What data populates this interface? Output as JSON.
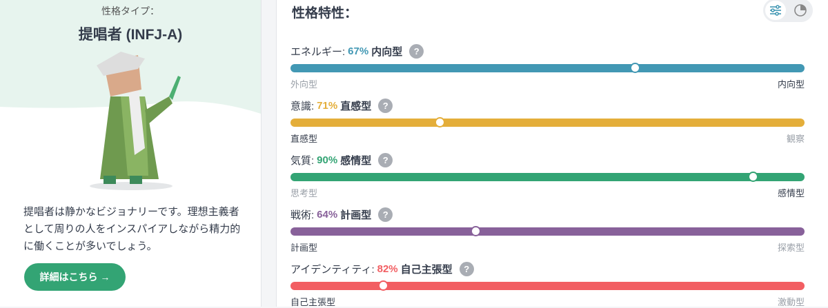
{
  "profile": {
    "kicker": "性格タイプ：",
    "title": "提唱者 (INFJ-A)",
    "description": "提唱者は静かなビジョナリーです。理想主義者として周りの人をインスパイアしながら精力的に働くことが多いでしょう。",
    "button": "詳細はこちら →"
  },
  "traits_panel": {
    "title": "性格特性：",
    "help_icon": "?",
    "traits": [
      {
        "label": "エネルギー:",
        "percent": "67%",
        "type": "内向型",
        "left": "外向型",
        "right": "内向型",
        "color": "#4298b4"
      },
      {
        "label": "意識:",
        "percent": "71%",
        "type": "直感型",
        "left": "直感型",
        "right": "観察",
        "color": "#e4ae3a"
      },
      {
        "label": "気質:",
        "percent": "90%",
        "type": "感情型",
        "left": "思考型",
        "right": "感情型",
        "color": "#33a474"
      },
      {
        "label": "戦術:",
        "percent": "64%",
        "type": "計画型",
        "left": "計画型",
        "right": "探索型",
        "color": "#88619a"
      },
      {
        "label": "アイデンティティ:",
        "percent": "82%",
        "type": "自己主張型",
        "left": "自己主張型",
        "right": "激動型",
        "color": "#f25e62"
      }
    ]
  }
}
